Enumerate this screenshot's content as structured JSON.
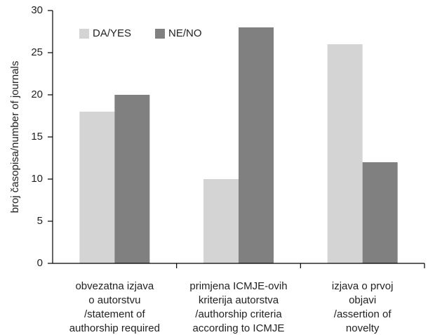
{
  "chart_data": {
    "type": "bar",
    "ylabel": "broj časopisa/number of journals",
    "categories": [
      [
        "obvezatna izjava",
        "o autorstvu",
        "/statement of",
        "authorship required"
      ],
      [
        "primjena ICMJE-ovih",
        "kriterija autorstva",
        "/authorship criteria",
        "according to ICMJE"
      ],
      [
        "izjava o prvoj",
        "objavi",
        "/assertion of",
        "novelty"
      ]
    ],
    "series": [
      {
        "name": "DA/YES",
        "color": "#d4d4d4",
        "values": [
          18,
          10,
          26
        ]
      },
      {
        "name": "NE/NO",
        "color": "#808080",
        "values": [
          20,
          28,
          12
        ]
      }
    ],
    "ylim": [
      0,
      30
    ],
    "yticks": [
      0,
      5,
      10,
      15,
      20,
      25,
      30
    ],
    "grid": false,
    "legend": "upper left"
  }
}
